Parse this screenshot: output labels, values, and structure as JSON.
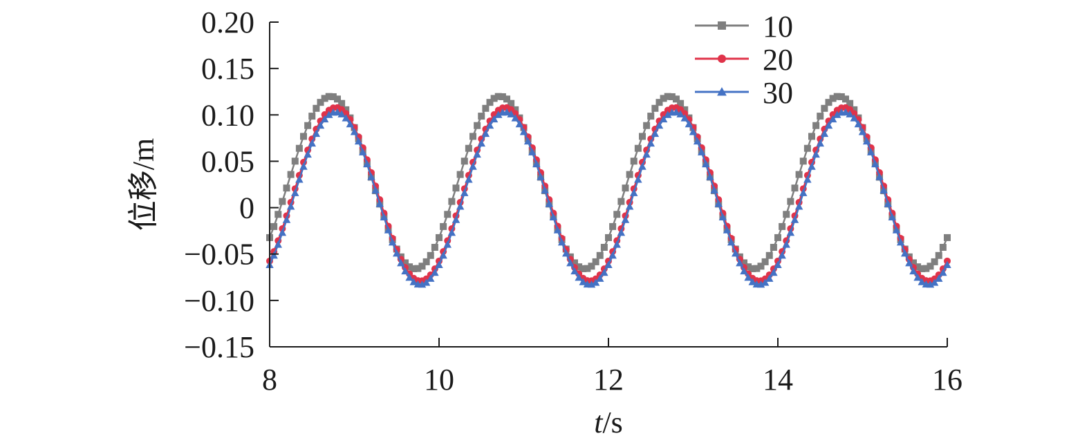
{
  "chart_data": {
    "type": "line",
    "title": "",
    "xlabel_italic": "t",
    "xlabel_unit": "/s",
    "ylabel": "位移/m",
    "xlim": [
      8,
      16
    ],
    "ylim": [
      -0.15,
      0.2
    ],
    "xticks": [
      8,
      10,
      12,
      14,
      16
    ],
    "xtick_labels": [
      "8",
      "10",
      "12",
      "14",
      "16"
    ],
    "yticks": [
      -0.15,
      -0.1,
      -0.05,
      0,
      0.05,
      0.1,
      0.15,
      0.2
    ],
    "ytick_labels": [
      "−0.15",
      "−0.10",
      "−0.05",
      "0",
      "0.05",
      "0.10",
      "0.15",
      "0.20"
    ],
    "grid": false,
    "legend_position": "top-right",
    "period": 2.0,
    "sample_step": 0.05,
    "series": [
      {
        "name": "10",
        "color": "#7f7f7f",
        "marker": "square",
        "peak_time": 8.72,
        "max": 0.12,
        "min": -0.066
      },
      {
        "name": "20",
        "color": "#e0334a",
        "marker": "circle",
        "peak_time": 8.78,
        "max": 0.108,
        "min": -0.079
      },
      {
        "name": "30",
        "color": "#4472c4",
        "marker": "triangle",
        "peak_time": 8.78,
        "max": 0.103,
        "min": -0.083
      }
    ]
  }
}
